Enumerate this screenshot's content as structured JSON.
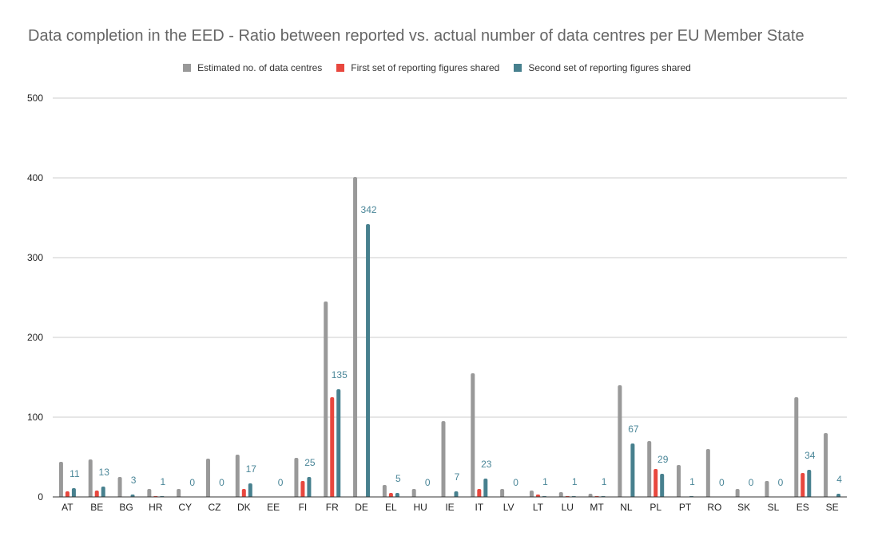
{
  "chart_data": {
    "type": "bar",
    "title": "Data completion in the EED - Ratio between reported vs. actual number of data centres per EU Member State",
    "xlabel": "",
    "ylabel": "",
    "ylim": [
      0,
      500
    ],
    "yticks": [
      0,
      100,
      200,
      300,
      400,
      500
    ],
    "grid": true,
    "legend_position": "top",
    "categories": [
      "AT",
      "BE",
      "BG",
      "HR",
      "CY",
      "CZ",
      "DK",
      "EE",
      "FI",
      "FR",
      "DE",
      "EL",
      "HU",
      "IE",
      "IT",
      "LV",
      "LT",
      "LU",
      "MT",
      "NL",
      "PL",
      "PT",
      "RO",
      "SK",
      "SL",
      "ES",
      "SE"
    ],
    "series": [
      {
        "name": "Estimated no.  of data centres",
        "color": "#999999",
        "values": [
          44,
          47,
          25,
          10,
          10,
          48,
          53,
          0,
          49,
          245,
          401,
          15,
          10,
          95,
          155,
          10,
          8,
          6,
          4,
          140,
          70,
          40,
          60,
          10,
          20,
          125,
          80
        ]
      },
      {
        "name": "First set of reporting figures shared",
        "color": "#e8473e",
        "values": [
          7,
          8,
          0,
          1,
          0,
          0,
          10,
          0,
          20,
          125,
          0,
          5,
          0,
          0,
          10,
          0,
          3,
          1,
          1,
          0,
          35,
          0,
          0,
          0,
          0,
          30,
          0
        ]
      },
      {
        "name": "Second set of reporting figures shared",
        "color": "#47808e",
        "values": [
          11,
          13,
          3,
          1,
          0,
          0,
          17,
          0,
          25,
          135,
          342,
          5,
          0,
          7,
          23,
          0,
          1,
          1,
          1,
          67,
          29,
          1,
          0,
          0,
          0,
          34,
          4
        ]
      }
    ],
    "data_labels": [
      "11",
      "13",
      "3",
      "1",
      "0",
      "0",
      "17",
      "0",
      "25",
      "135",
      "342",
      "5",
      "0",
      "7",
      "23",
      "0",
      "1",
      "1",
      "1",
      "67",
      "29",
      "1",
      "0",
      "0",
      "0",
      "34",
      "4"
    ]
  }
}
